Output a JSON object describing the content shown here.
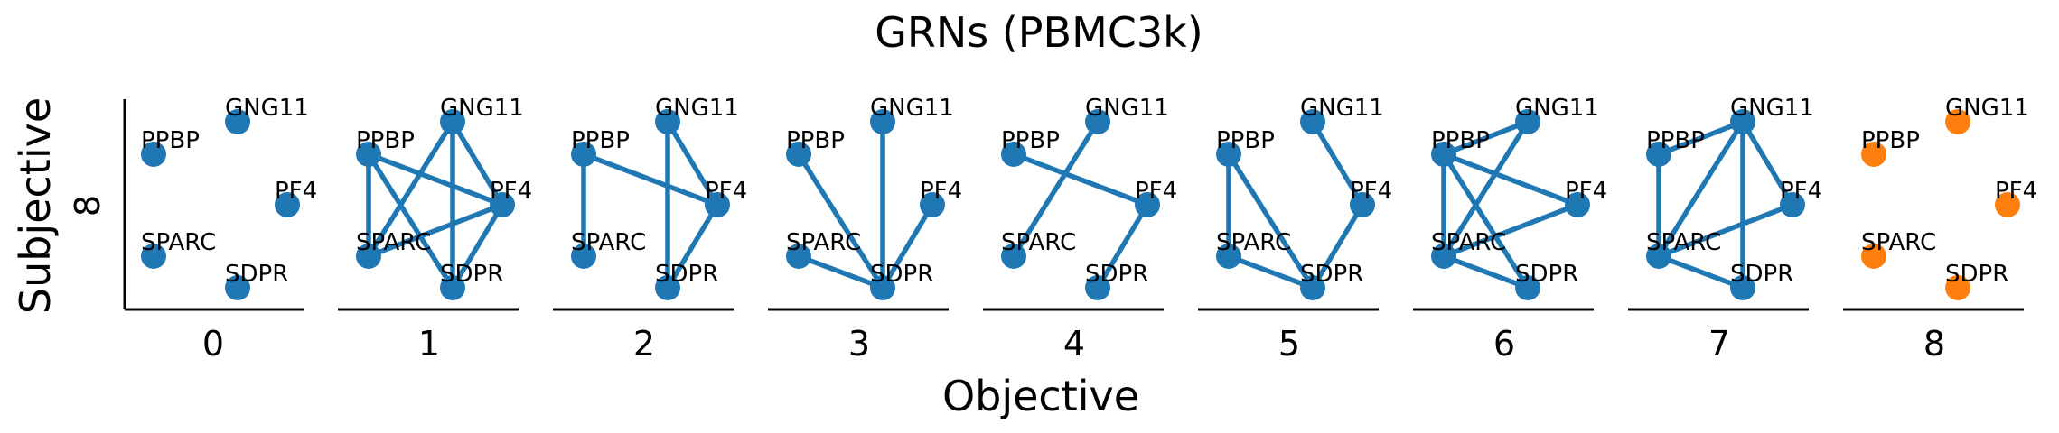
{
  "chart_data": {
    "type": "network-grid",
    "title": "GRNs (PBMC3k)",
    "xlabel": "Objective",
    "ylabel": "Subjective",
    "y_tick": "8",
    "nodes": [
      "GNG11",
      "PPBP",
      "PF4",
      "SPARC",
      "SDPR"
    ],
    "colors": {
      "default": "#1f77b4",
      "highlight": "#ff7f0e"
    },
    "panels": [
      {
        "label": "0",
        "color": "default",
        "edges": []
      },
      {
        "label": "1",
        "color": "default",
        "edges": [
          [
            "PPBP",
            "PF4"
          ],
          [
            "PPBP",
            "SPARC"
          ],
          [
            "PPBP",
            "SDPR"
          ],
          [
            "GNG11",
            "PF4"
          ],
          [
            "GNG11",
            "SPARC"
          ],
          [
            "GNG11",
            "SDPR"
          ],
          [
            "PF4",
            "SPARC"
          ],
          [
            "PF4",
            "SDPR"
          ]
        ]
      },
      {
        "label": "2",
        "color": "default",
        "edges": [
          [
            "PPBP",
            "PF4"
          ],
          [
            "PPBP",
            "SPARC"
          ],
          [
            "GNG11",
            "PF4"
          ],
          [
            "GNG11",
            "SDPR"
          ],
          [
            "PF4",
            "SDPR"
          ]
        ]
      },
      {
        "label": "3",
        "color": "default",
        "edges": [
          [
            "PPBP",
            "SDPR"
          ],
          [
            "GNG11",
            "SDPR"
          ],
          [
            "PF4",
            "SDPR"
          ],
          [
            "SPARC",
            "SDPR"
          ]
        ]
      },
      {
        "label": "4",
        "color": "default",
        "edges": [
          [
            "PPBP",
            "PF4"
          ],
          [
            "GNG11",
            "SPARC"
          ],
          [
            "PF4",
            "SDPR"
          ]
        ]
      },
      {
        "label": "5",
        "color": "default",
        "edges": [
          [
            "PPBP",
            "SPARC"
          ],
          [
            "PPBP",
            "SDPR"
          ],
          [
            "GNG11",
            "PF4"
          ],
          [
            "PF4",
            "SDPR"
          ],
          [
            "SPARC",
            "SDPR"
          ]
        ]
      },
      {
        "label": "6",
        "color": "default",
        "edges": [
          [
            "PPBP",
            "GNG11"
          ],
          [
            "PPBP",
            "PF4"
          ],
          [
            "PPBP",
            "SPARC"
          ],
          [
            "PPBP",
            "SDPR"
          ],
          [
            "GNG11",
            "SPARC"
          ],
          [
            "PF4",
            "SPARC"
          ],
          [
            "SPARC",
            "SDPR"
          ]
        ]
      },
      {
        "label": "7",
        "color": "default",
        "edges": [
          [
            "PPBP",
            "GNG11"
          ],
          [
            "PPBP",
            "SPARC"
          ],
          [
            "GNG11",
            "SPARC"
          ],
          [
            "GNG11",
            "PF4"
          ],
          [
            "GNG11",
            "SDPR"
          ],
          [
            "PF4",
            "SPARC"
          ],
          [
            "SPARC",
            "SDPR"
          ]
        ]
      },
      {
        "label": "8",
        "color": "highlight",
        "edges": []
      }
    ]
  }
}
